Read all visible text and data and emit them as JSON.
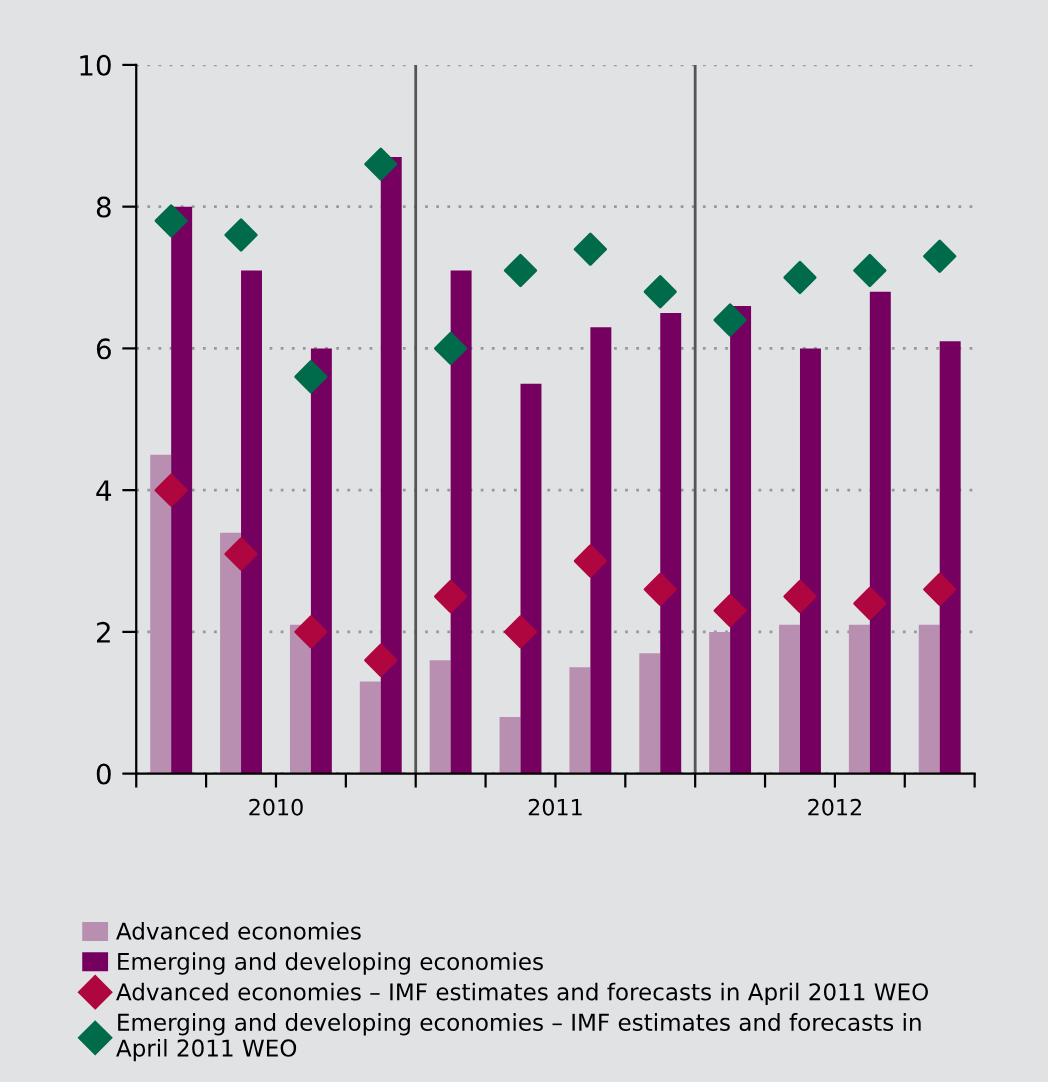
{
  "chart_data": {
    "type": "bar",
    "categories": [
      null,
      null,
      null,
      null,
      null,
      null,
      null,
      null,
      null,
      null,
      null,
      null
    ],
    "series": [
      {
        "name": "Advanced economies",
        "color": "#b98fb1",
        "values": [
          4.5,
          3.4,
          2.1,
          1.3,
          1.6,
          0.8,
          1.5,
          1.7,
          2.0,
          2.1,
          2.1,
          2.1
        ]
      },
      {
        "name": "Emerging and developing economies",
        "color": "#760060",
        "values": [
          8.0,
          7.1,
          6.0,
          8.7,
          7.1,
          5.5,
          6.3,
          6.5,
          6.6,
          6.0,
          6.8,
          6.1
        ]
      },
      {
        "name": "Advanced economies – IMF estimates and forecasts in April 2011 WEO",
        "type": "scatter",
        "marker": "diamond",
        "color": "#b0063f",
        "values": [
          4.0,
          3.1,
          2.0,
          1.6,
          2.5,
          2.0,
          3.0,
          2.6,
          2.3,
          2.5,
          2.4,
          2.6
        ]
      },
      {
        "name": "Emerging and developing economies – IMF estimates and forecasts in April 2011 WEO",
        "type": "scatter",
        "marker": "diamond",
        "color": "#006b4a",
        "values": [
          7.8,
          7.6,
          5.6,
          8.6,
          6.0,
          7.1,
          7.4,
          6.8,
          6.4,
          7.0,
          7.1,
          7.3
        ]
      }
    ],
    "ylim": [
      0,
      10
    ],
    "yticks": [
      0,
      2,
      4,
      6,
      8,
      10
    ],
    "grid": "y",
    "legend": "bottom",
    "annotations": [
      "2010",
      "2011",
      "2012"
    ]
  }
}
